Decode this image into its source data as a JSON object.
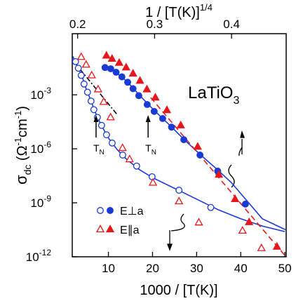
{
  "chart_data": {
    "type": "scatter",
    "yscale": "log",
    "xlabel": "1000 / [T(K)]",
    "x2label": [
      "1 / [T(K)]",
      "1/4"
    ],
    "ylabel": [
      "σ",
      "dc",
      " (Ω",
      "-1",
      "cm",
      "-1",
      ")"
    ],
    "annotation": [
      "LaTiO",
      "3"
    ],
    "tn_labels": [
      {
        "x": 7.2,
        "text": [
          "T",
          "N"
        ]
      },
      {
        "x": 19.0,
        "text": [
          "T",
          "N"
        ]
      }
    ],
    "xlim": [
      1.8,
      50.3
    ],
    "xticks": [
      10,
      20,
      30,
      40,
      50
    ],
    "x2lim": [
      0.193,
      0.471
    ],
    "x2ticks": [
      0.2,
      0.3,
      0.4
    ],
    "ylim": [
      1e-12,
      2.5
    ],
    "yticks": [
      {
        "value": 1e-12,
        "label": "10",
        "exponent": "-12"
      },
      {
        "value": 1e-09,
        "label": "10",
        "exponent": "-9"
      },
      {
        "value": 1e-06,
        "label": "10",
        "exponent": "-6"
      },
      {
        "value": 0.001,
        "label": "10",
        "exponent": "-3"
      }
    ],
    "legend": [
      {
        "label": "E⊥a",
        "color": "#1a3ad6",
        "marker": "circle"
      },
      {
        "label": "E∥a",
        "color": "#e8171b",
        "marker": "triangle"
      }
    ],
    "series": [
      {
        "legend": 0,
        "filled": false,
        "axis": "x",
        "color": "#1a3ad6",
        "marker": "circle",
        "x": [
          2.55,
          3.19,
          3.83,
          4.47,
          5.26,
          6.06,
          6.7,
          7.5,
          8.45,
          9.57,
          10.85,
          13.24,
          16.4,
          19.9,
          26.0,
          33.2
        ],
        "values": [
          0.07,
          0.03,
          0.012,
          0.004,
          0.0014,
          0.00045,
          0.00015,
          5.6e-05,
          2e-05,
          6e-06,
          2.1e-06,
          4.5e-07,
          1.1e-07,
          2.8e-08,
          5e-09,
          5.5e-10
        ]
      },
      {
        "legend": 0,
        "filled": true,
        "axis": "x2",
        "color": "#1a3ad6",
        "marker": "circle",
        "x": [
          0.2356,
          0.243,
          0.25,
          0.2575,
          0.265,
          0.272,
          0.2795,
          0.2904,
          0.2995,
          0.3105,
          0.322,
          0.338,
          0.359,
          0.382,
          0.418
        ],
        "values": [
          0.033,
          0.028,
          0.018,
          0.01,
          0.005,
          0.0022,
          0.0009,
          0.00029,
          0.00012,
          4.8e-05,
          1.6e-05,
          3.2e-06,
          4.5e-07,
          5.8e-08,
          8.5e-10
        ]
      },
      {
        "legend": 1,
        "filled": false,
        "axis": "x",
        "color": "#e8171b",
        "marker": "triangle",
        "x": [
          3.83,
          4.94,
          6.22,
          7.66,
          8.93,
          10.5,
          13.2,
          14.8,
          20.1,
          26.0,
          30.5,
          40.4,
          44.7
        ],
        "values": [
          0.126,
          0.047,
          0.012,
          0.002,
          0.0004,
          5.6e-05,
          1.1e-06,
          2.6e-07,
          1.3e-08,
          1.2e-09,
          8e-11,
          2.8e-11,
          3e-12
        ]
      },
      {
        "legend": 1,
        "filled": true,
        "axis": "x2",
        "color": "#e8171b",
        "marker": "triangle",
        "x": [
          0.2374,
          0.2447,
          0.254,
          0.263,
          0.272,
          0.281,
          0.29,
          0.301,
          0.316,
          0.334,
          0.356,
          0.3836,
          0.4046,
          0.4228,
          0.459
        ],
        "values": [
          0.15,
          0.1,
          0.06,
          0.033,
          0.015,
          0.006,
          0.002,
          0.0007,
          0.00014,
          2e-05,
          1.3e-06,
          3.6e-08,
          1.6e-09,
          8.3e-11,
          3.6e-12
        ]
      }
    ],
    "lines": [
      {
        "axis": "x",
        "color": "#1a3ad6",
        "dash": "none",
        "x": [
          1.9,
          3,
          4,
          5,
          6,
          7,
          8,
          9,
          10,
          12,
          14,
          17,
          20,
          25,
          30,
          35,
          40,
          45,
          50
        ],
        "values": [
          0.14,
          0.04,
          0.011,
          0.002,
          0.0005,
          0.00011,
          3.2e-05,
          1.1e-05,
          4e-06,
          9e-07,
          2.8e-07,
          7e-08,
          2.5e-08,
          6.3e-09,
          1.6e-09,
          4e-10,
          1.3e-10,
          5e-11,
          2.5e-11
        ]
      },
      {
        "axis": "x2",
        "color": "#1a3ad6",
        "dash": "none",
        "x": [
          0.235,
          0.25,
          0.265,
          0.28,
          0.3,
          0.32,
          0.34,
          0.36,
          0.38,
          0.4,
          0.42,
          0.44,
          0.47
        ],
        "values": [
          0.035,
          0.018,
          0.005,
          0.001,
          0.00013,
          2e-05,
          2.8e-06,
          4.5e-07,
          8e-08,
          1.3e-08,
          1.3e-09,
          1.3e-10,
          3.2e-11
        ]
      },
      {
        "axis": "x2",
        "color": "#e8171b",
        "dash": "8 5",
        "x": [
          0.295,
          0.4685
        ],
        "values": [
          0.0007,
          1.3e-12
        ]
      },
      {
        "axis": "x",
        "color": "#000000",
        "dash": "7 3 2 3",
        "x": [
          2.07,
          12.1
        ],
        "values": [
          0.074,
          7.4e-05
        ]
      }
    ]
  }
}
